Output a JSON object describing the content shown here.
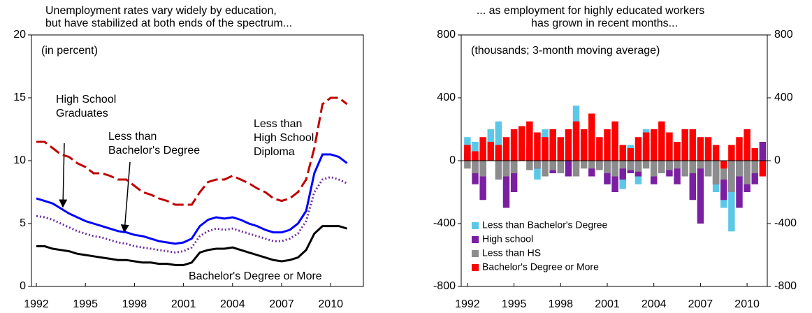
{
  "chart_data": [
    {
      "type": "line",
      "title_lines": [
        "Unemployment rates vary widely by education,",
        "but have stabilized at both ends of the spectrum..."
      ],
      "note": "(in percent)",
      "x": [
        1992,
        1992.5,
        1993,
        1993.5,
        1994,
        1994.5,
        1995,
        1995.5,
        1996,
        1996.5,
        1997,
        1997.5,
        1998,
        1998.5,
        1999,
        1999.5,
        2000,
        2000.5,
        2001,
        2001.5,
        2002,
        2002.5,
        2003,
        2003.5,
        2004,
        2004.5,
        2005,
        2005.5,
        2006,
        2006.5,
        2007,
        2007.5,
        2008,
        2008.5,
        2009,
        2009.5,
        2010,
        2010.5,
        2011
      ],
      "series": [
        {
          "name": "Less than High School Diploma",
          "color": "#c00000",
          "style": "dashed",
          "values": [
            11.5,
            11.5,
            11,
            10.5,
            10.3,
            9.8,
            9.5,
            9,
            9,
            8.8,
            8.5,
            8.5,
            8,
            7.5,
            7.3,
            7,
            6.8,
            6.5,
            6.5,
            6.5,
            7.5,
            8.3,
            8.5,
            8.5,
            8.8,
            8.5,
            8.2,
            7.8,
            7.5,
            7,
            6.8,
            7,
            7.5,
            8.5,
            11,
            14.5,
            15,
            15,
            14.5
          ]
        },
        {
          "name": "High School Graduates",
          "color": "#0000ff",
          "style": "solid",
          "values": [
            7,
            6.8,
            6.6,
            6.2,
            5.8,
            5.5,
            5.2,
            5,
            4.8,
            4.6,
            4.4,
            4.3,
            4.1,
            4,
            3.8,
            3.6,
            3.5,
            3.4,
            3.5,
            3.8,
            4.8,
            5.3,
            5.5,
            5.4,
            5.5,
            5.3,
            5,
            4.8,
            4.5,
            4.3,
            4.3,
            4.5,
            5,
            6,
            9,
            10.5,
            10.5,
            10.3,
            9.8
          ]
        },
        {
          "name": "Less than Bachelor's Degree",
          "color": "#7030a0",
          "style": "dotted",
          "values": [
            5.6,
            5.5,
            5.3,
            5,
            4.7,
            4.4,
            4.2,
            4,
            3.9,
            3.7,
            3.5,
            3.4,
            3.2,
            3.1,
            3,
            2.9,
            2.8,
            2.7,
            2.8,
            3.1,
            4,
            4.4,
            4.6,
            4.5,
            4.6,
            4.4,
            4.2,
            4,
            3.8,
            3.6,
            3.6,
            3.8,
            4.2,
            5.2,
            7.5,
            8.5,
            8.7,
            8.5,
            8.2
          ]
        },
        {
          "name": "Bachelor's Degree or More",
          "color": "#000000",
          "style": "solid",
          "values": [
            3.2,
            3.2,
            3,
            2.9,
            2.8,
            2.6,
            2.5,
            2.4,
            2.3,
            2.2,
            2.1,
            2.1,
            2,
            1.9,
            1.9,
            1.8,
            1.8,
            1.7,
            1.7,
            1.9,
            2.7,
            2.9,
            3,
            3,
            3.1,
            2.9,
            2.7,
            2.5,
            2.3,
            2.1,
            2,
            2.1,
            2.3,
            2.9,
            4.2,
            4.8,
            4.8,
            4.8,
            4.6
          ]
        }
      ],
      "xlim": [
        1991.7,
        2012
      ],
      "xticks": [
        1992,
        1995,
        1998,
        2001,
        2004,
        2007,
        2010
      ],
      "ylim": [
        0,
        20
      ],
      "yticks": [
        0,
        5,
        10,
        15,
        20
      ]
    },
    {
      "type": "bar",
      "title_lines": [
        "... as employment for highly educated workers",
        "has grown in recent months..."
      ],
      "note": "(thousands; 3-month moving average)",
      "x": [
        1992,
        1992.5,
        1993,
        1993.5,
        1994,
        1994.5,
        1995,
        1995.5,
        1996,
        1996.5,
        1997,
        1997.5,
        1998,
        1998.5,
        1999,
        1999.5,
        2000,
        2000.5,
        2001,
        2001.5,
        2002,
        2002.5,
        2003,
        2003.5,
        2004,
        2004.5,
        2005,
        2005.5,
        2006,
        2006.5,
        2007,
        2007.5,
        2008,
        2008.5,
        2009,
        2009.5,
        2010,
        2010.5,
        2011
      ],
      "series": [
        {
          "name": "Less than Bachelor's Degree",
          "color": "#5bc8e8",
          "values": [
            150,
            120,
            80,
            200,
            250,
            -100,
            180,
            100,
            150,
            -120,
            200,
            150,
            80,
            -100,
            350,
            120,
            -80,
            100,
            -150,
            -200,
            -180,
            100,
            -150,
            200,
            150,
            100,
            -50,
            120,
            100,
            -150,
            -100,
            80,
            -200,
            -300,
            -450,
            -200,
            100,
            -100,
            80
          ]
        },
        {
          "name": "High school",
          "color": "#7b1fa2",
          "values": [
            50,
            -150,
            -250,
            100,
            80,
            -300,
            -200,
            100,
            80,
            -50,
            100,
            -80,
            120,
            -100,
            -50,
            150,
            -100,
            -50,
            -150,
            -200,
            -120,
            -80,
            -100,
            100,
            -150,
            -80,
            -100,
            -150,
            80,
            -250,
            -400,
            -100,
            -150,
            -250,
            -200,
            -300,
            -200,
            -150,
            120
          ]
        },
        {
          "name": "Less than HS",
          "color": "#8c8c8c",
          "values": [
            -50,
            -80,
            -100,
            50,
            -120,
            -100,
            -80,
            50,
            -60,
            -50,
            -100,
            -60,
            -80,
            50,
            -100,
            -50,
            -50,
            -60,
            -80,
            -100,
            -50,
            -60,
            -70,
            -50,
            -100,
            -80,
            -60,
            -50,
            -100,
            -80,
            -50,
            -100,
            -150,
            -120,
            -200,
            -100,
            -150,
            -80,
            -50
          ]
        },
        {
          "name": "Bachelor's Degree or More",
          "color": "#ff0000",
          "values": [
            100,
            60,
            150,
            120,
            100,
            150,
            200,
            220,
            250,
            180,
            150,
            200,
            150,
            200,
            250,
            200,
            300,
            150,
            200,
            250,
            100,
            80,
            150,
            180,
            200,
            250,
            180,
            120,
            200,
            200,
            150,
            150,
            100,
            -50,
            100,
            150,
            200,
            80,
            -100
          ]
        }
      ],
      "xlim": [
        1991.6,
        2011.3
      ],
      "xticks": [
        1992,
        1995,
        1998,
        2001,
        2004,
        2007,
        2010
      ],
      "ylim": [
        -800,
        800
      ],
      "yticks": [
        -800,
        -400,
        0,
        400,
        800
      ],
      "y2lim": [
        -800,
        800
      ],
      "y2ticks": [
        -800,
        -400,
        0,
        400,
        800
      ]
    }
  ]
}
